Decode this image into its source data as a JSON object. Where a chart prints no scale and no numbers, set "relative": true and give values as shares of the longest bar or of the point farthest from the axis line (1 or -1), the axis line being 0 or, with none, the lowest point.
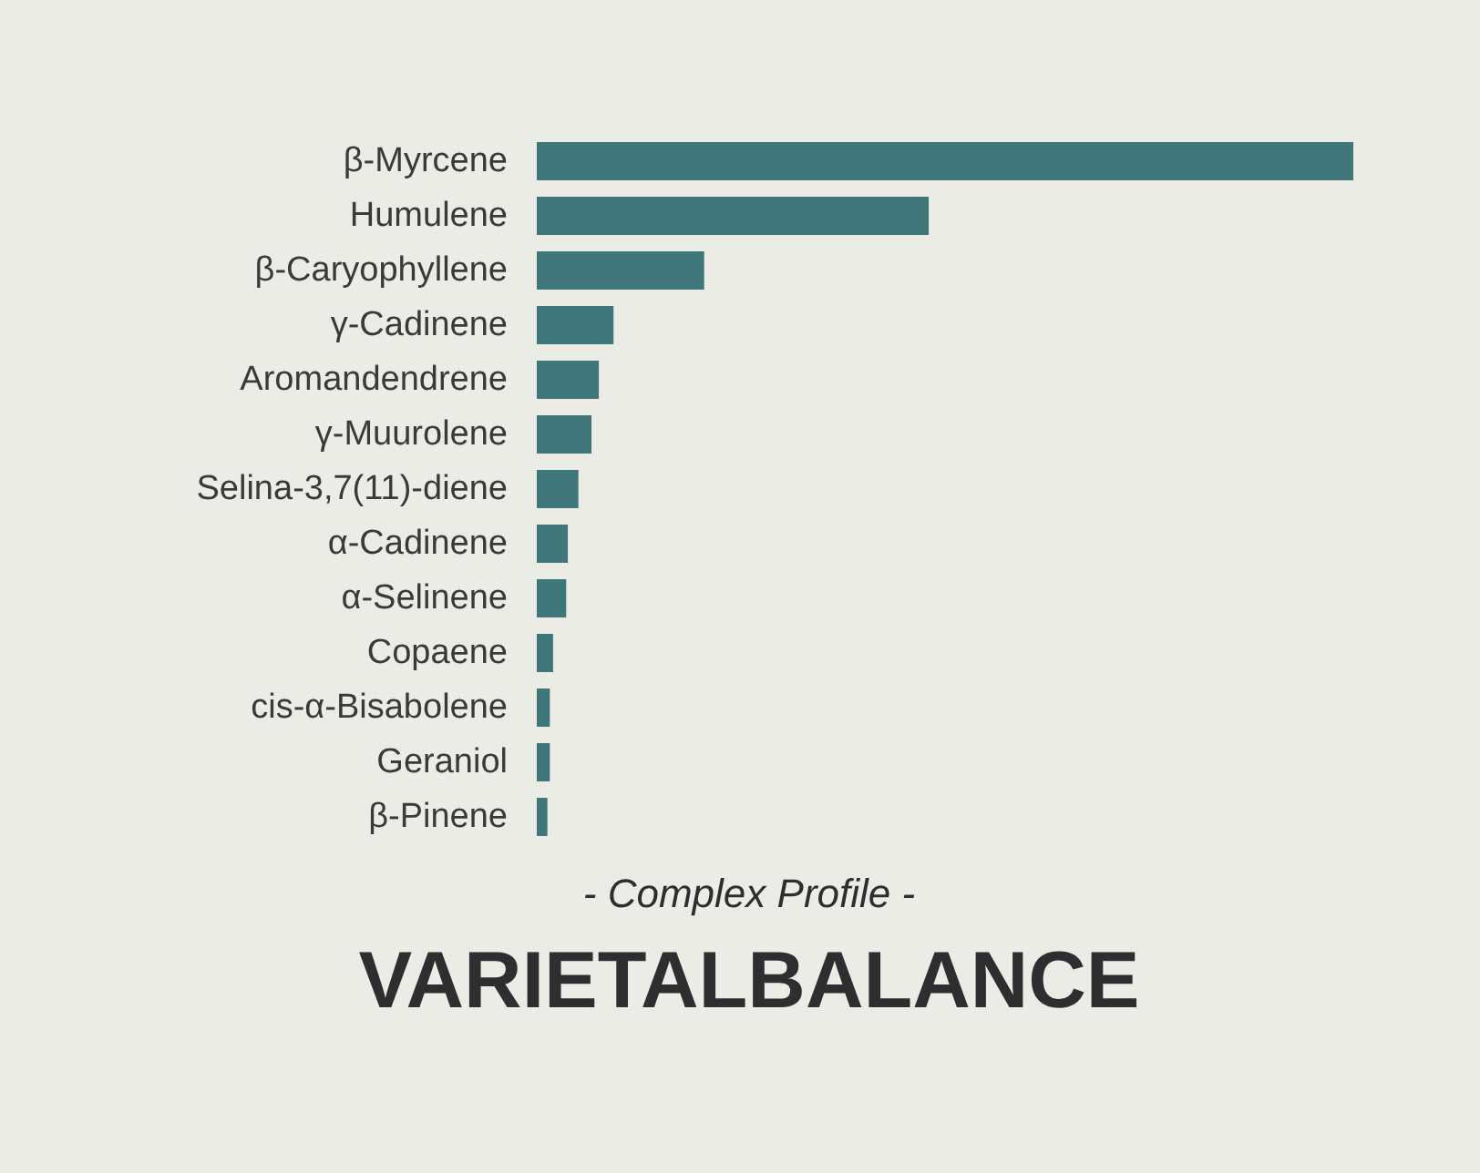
{
  "chart_data": {
    "type": "bar",
    "orientation": "horizontal",
    "relative": true,
    "title": "VARIETALBALANCE",
    "subtitle": "- Complex Profile -",
    "categories": [
      "β-Myrcene",
      "Humulene",
      "β-Caryophyllene",
      "γ-Cadinene",
      "Aromandendrene",
      "γ-Muurolene",
      "Selina-3,7(11)-diene",
      "α-Cadinene",
      "α-Selinene",
      "Copaene",
      "cis-α-Bisabolene",
      "Geraniol",
      "β-Pinene"
    ],
    "values": [
      1,
      0.48,
      0.205,
      0.094,
      0.076,
      0.067,
      0.051,
      0.038,
      0.036,
      0.02,
      0.016,
      0.016,
      0.013
    ],
    "color": "#3f7679"
  }
}
